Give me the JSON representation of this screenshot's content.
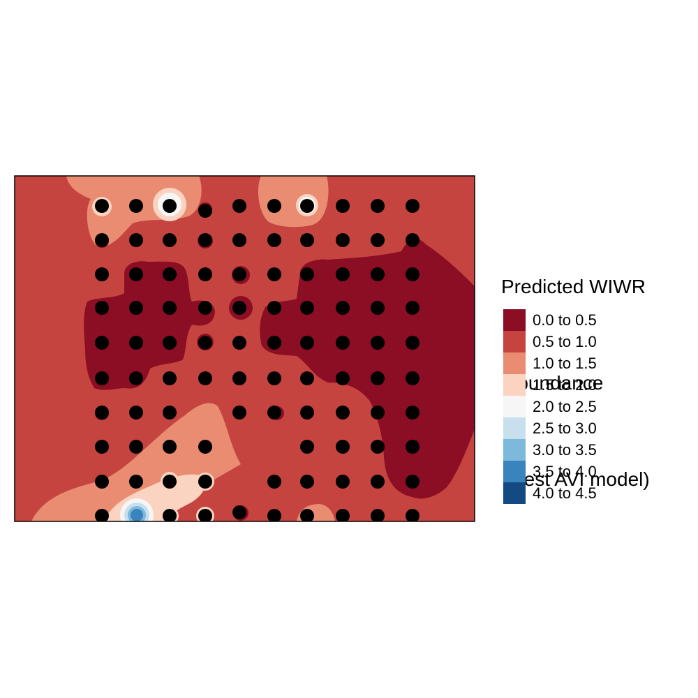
{
  "legend": {
    "title_lines": [
      "Predicted WIWR",
      " abundance",
      " (best AVI model)"
    ],
    "items": [
      {
        "label": "0.0 to 0.5",
        "color": "#8b0e24"
      },
      {
        "label": "0.5 to 1.0",
        "color": "#c6443f"
      },
      {
        "label": "1.0 to 1.5",
        "color": "#e98c72"
      },
      {
        "label": "1.5 to 2.0",
        "color": "#fad3c1"
      },
      {
        "label": "2.0 to 2.5",
        "color": "#f6f6f6"
      },
      {
        "label": "2.5 to 3.0",
        "color": "#c8e0ee"
      },
      {
        "label": "3.0 to 3.5",
        "color": "#7db9da"
      },
      {
        "label": "3.5 to 4.0",
        "color": "#3a84bd"
      },
      {
        "label": "4.0 to 4.5",
        "color": "#134a82"
      }
    ]
  },
  "map": {
    "background_class": "0.5 to 1.0",
    "point_color": "#000000",
    "border_color": "#000000"
  }
}
